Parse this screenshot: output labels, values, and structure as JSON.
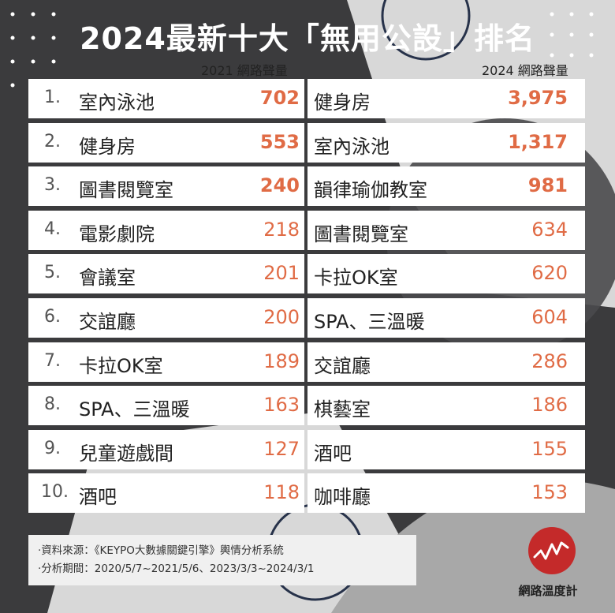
{
  "title": "2024最新十大「無用公設」排名",
  "colors": {
    "accent": "#e06b45",
    "background_dark": "#3b3b3d",
    "background_light": "#d8d8d8",
    "logo": "#c42a2a"
  },
  "chart_data": {
    "type": "table",
    "title": "2024最新十大「無用公設」排名",
    "columns": [
      "2021 網路聲量",
      "2024 網路聲量"
    ],
    "ranks": [
      "1.",
      "2.",
      "3.",
      "4.",
      "5.",
      "6.",
      "7.",
      "8.",
      "9.",
      "10."
    ],
    "series": [
      {
        "name": "2021 網路聲量",
        "items": [
          {
            "label": "室內泳池",
            "value": 702
          },
          {
            "label": "健身房",
            "value": 553
          },
          {
            "label": "圖書閱覽室",
            "value": 240
          },
          {
            "label": "電影劇院",
            "value": 218
          },
          {
            "label": "會議室",
            "value": 201
          },
          {
            "label": "交誼廳",
            "value": 200
          },
          {
            "label": "卡拉OK室",
            "value": 189
          },
          {
            "label": "SPA、三溫暖",
            "value": 163
          },
          {
            "label": "兒童遊戲間",
            "value": 127
          },
          {
            "label": "酒吧",
            "value": 118
          }
        ]
      },
      {
        "name": "2024 網路聲量",
        "items": [
          {
            "label": "健身房",
            "value": 3975
          },
          {
            "label": "室內泳池",
            "value": 1317
          },
          {
            "label": "韻律瑜伽教室",
            "value": 981
          },
          {
            "label": "圖書閱覽室",
            "value": 634
          },
          {
            "label": "卡拉OK室",
            "value": 620
          },
          {
            "label": "SPA、三溫暖",
            "value": 604
          },
          {
            "label": "交誼廳",
            "value": 286
          },
          {
            "label": "棋藝室",
            "value": 186
          },
          {
            "label": "酒吧",
            "value": 155
          },
          {
            "label": "咖啡廳",
            "value": 153
          }
        ]
      }
    ]
  },
  "footer": {
    "source": "‧資料來源：《KEYPO大數據關鍵引擎》輿情分析系統",
    "period": "‧分析期間：2020/5/7~2021/5/6、2023/3/3~2024/3/1"
  },
  "logo": {
    "text": "網路溫度計",
    "icon": "pulse-wave-icon"
  }
}
